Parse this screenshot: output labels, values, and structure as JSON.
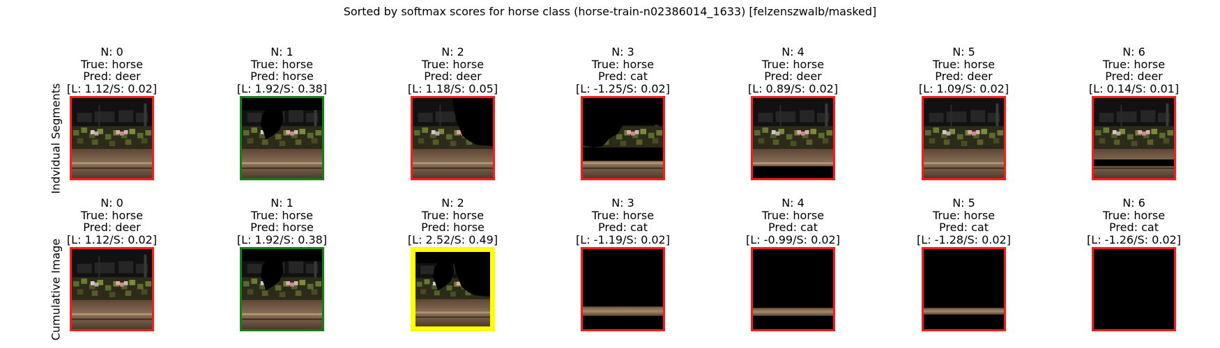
{
  "title": "Sorted by softmax scores for horse class (horse-train-n02386014_1633) [felzenszwalb/masked]",
  "rows": [
    {
      "label": "Indvidual Segments",
      "cells": [
        {
          "n": "N: 0",
          "true_label": "True: horse",
          "pred": "Pred: deer",
          "scores": "[L: 1.12/S: 0.02]",
          "border": "red",
          "mask": "none"
        },
        {
          "n": "N: 1",
          "true_label": "True: horse",
          "pred": "Pred: horse",
          "scores": "[L: 1.92/S: 0.38]",
          "border": "green",
          "mask": "topleft-hole"
        },
        {
          "n": "N: 2",
          "true_label": "True: horse",
          "pred": "Pred: deer",
          "scores": "[L: 1.18/S: 0.05]",
          "border": "red",
          "mask": "topright-hole"
        },
        {
          "n": "N: 3",
          "true_label": "True: horse",
          "pred": "Pred: cat",
          "scores": "[L: -1.25/S: 0.02]",
          "border": "red",
          "mask": "ind3"
        },
        {
          "n": "N: 4",
          "true_label": "True: horse",
          "pred": "Pred: deer",
          "scores": "[L: 0.89/S: 0.02]",
          "border": "red",
          "mask": "bottom-strip"
        },
        {
          "n": "N: 5",
          "true_label": "True: horse",
          "pred": "Pred: deer",
          "scores": "[L: 1.09/S: 0.02]",
          "border": "red",
          "mask": "none"
        },
        {
          "n": "N: 6",
          "true_label": "True: horse",
          "pred": "Pred: deer",
          "scores": "[L: 0.14/S: 0.01]",
          "border": "red",
          "mask": "mid-strip"
        }
      ]
    },
    {
      "label": "Cumulative Image",
      "cells": [
        {
          "n": "N: 0",
          "true_label": "True: horse",
          "pred": "Pred: deer",
          "scores": "[L: 1.12/S: 0.02]",
          "border": "red",
          "mask": "none"
        },
        {
          "n": "N: 1",
          "true_label": "True: horse",
          "pred": "Pred: horse",
          "scores": "[L: 1.92/S: 0.38]",
          "border": "green",
          "mask": "topleft-hole"
        },
        {
          "n": "N: 2",
          "true_label": "True: horse",
          "pred": "Pred: horse",
          "scores": "[L: 2.52/S: 0.49]",
          "border": "yellow",
          "mask": "cum2"
        },
        {
          "n": "N: 3",
          "true_label": "True: horse",
          "pred": "Pred: cat",
          "scores": "[L: -1.19/S: 0.02]",
          "border": "red",
          "mask": "cum3"
        },
        {
          "n": "N: 4",
          "true_label": "True: horse",
          "pred": "Pred: cat",
          "scores": "[L: -0.99/S: 0.02]",
          "border": "red",
          "mask": "cum4"
        },
        {
          "n": "N: 5",
          "true_label": "True: horse",
          "pred": "Pred: cat",
          "scores": "[L: -1.28/S: 0.02]",
          "border": "red",
          "mask": "cum5"
        },
        {
          "n": "N: 6",
          "true_label": "True: horse",
          "pred": "Pred: cat",
          "scores": "[L: -1.26/S: 0.02]",
          "border": "red",
          "mask": "black"
        }
      ]
    }
  ],
  "colors": {
    "red": "#ff1a1a",
    "green": "#128012",
    "yellow": "#ffff00"
  }
}
